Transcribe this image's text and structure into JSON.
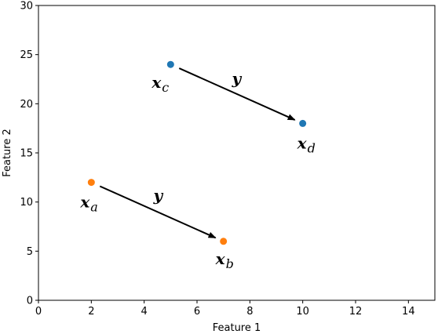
{
  "chart_data": {
    "type": "scatter",
    "xlabel": "Feature 1",
    "ylabel": "Feature 2",
    "xlim": [
      0,
      15
    ],
    "ylim": [
      0,
      30
    ],
    "xticks": [
      0,
      2,
      4,
      6,
      8,
      10,
      12,
      14
    ],
    "yticks": [
      0,
      5,
      10,
      15,
      20,
      25,
      30
    ],
    "grid": false,
    "points": [
      {
        "id": "xa",
        "x": 2,
        "y": 12,
        "color": "#ff7f0e",
        "label_main": "x",
        "label_sub": "a"
      },
      {
        "id": "xb",
        "x": 7,
        "y": 6,
        "color": "#ff7f0e",
        "label_main": "x",
        "label_sub": "b"
      },
      {
        "id": "xc",
        "x": 5,
        "y": 24,
        "color": "#1f77b4",
        "label_main": "x",
        "label_sub": "c"
      },
      {
        "id": "xd",
        "x": 10,
        "y": 18,
        "color": "#1f77b4",
        "label_main": "x",
        "label_sub": "d"
      }
    ],
    "arrows": [
      {
        "from": "xa",
        "to": "xb",
        "label": "y"
      },
      {
        "from": "xc",
        "to": "xd",
        "label": "y"
      }
    ]
  }
}
